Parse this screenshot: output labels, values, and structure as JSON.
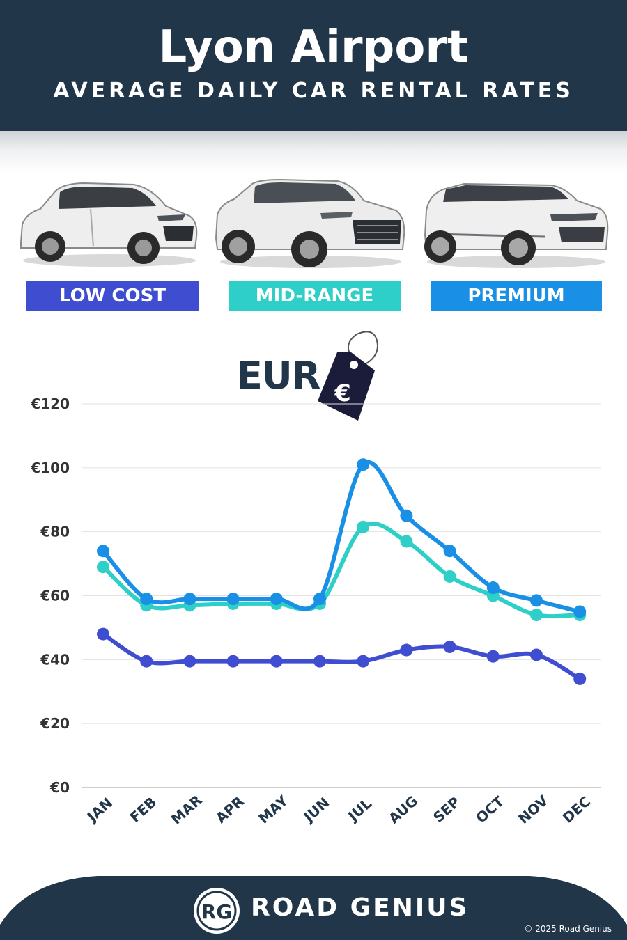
{
  "header": {
    "title": "Lyon Airport",
    "subtitle": "AVERAGE DAILY CAR RENTAL RATES"
  },
  "categories": [
    {
      "label": "LOW COST",
      "color": "#3f4ed1"
    },
    {
      "label": "MID-RANGE",
      "color": "#2ecfc8"
    },
    {
      "label": "PREMIUM",
      "color": "#1a8fe6"
    }
  ],
  "currency": {
    "label": "EUR",
    "symbol": "€",
    "tag_icon": "price-tag-icon"
  },
  "chart_data": {
    "type": "line",
    "x": [
      "JAN",
      "FEB",
      "MAR",
      "APR",
      "MAY",
      "JUN",
      "JUL",
      "AUG",
      "SEP",
      "OCT",
      "NOV",
      "DEC"
    ],
    "series": [
      {
        "name": "LOW COST",
        "color": "#3f4ed1",
        "values": [
          48,
          39.5,
          39.5,
          39.5,
          39.5,
          39.5,
          39.5,
          43,
          44,
          41,
          41.5,
          34
        ]
      },
      {
        "name": "MID-RANGE",
        "color": "#2ecfc8",
        "values": [
          69,
          57,
          57,
          57.5,
          57.5,
          57.5,
          81.5,
          77,
          66,
          60,
          54,
          54
        ]
      },
      {
        "name": "PREMIUM",
        "color": "#1a8fe6",
        "values": [
          74,
          59,
          59,
          59,
          59,
          59,
          101,
          85,
          74,
          62.5,
          58.5,
          55
        ]
      }
    ],
    "y_ticks": [
      "€0",
      "€20",
      "€40",
      "€60",
      "€80",
      "€100",
      "€120"
    ],
    "ylim": [
      0,
      120
    ],
    "grid": true,
    "legend": "top (category badges)"
  },
  "footer": {
    "logo_text": "RG",
    "brand": "ROAD GENIUS",
    "copyright": "© 2025 Road Genius",
    "background": "#223649"
  }
}
